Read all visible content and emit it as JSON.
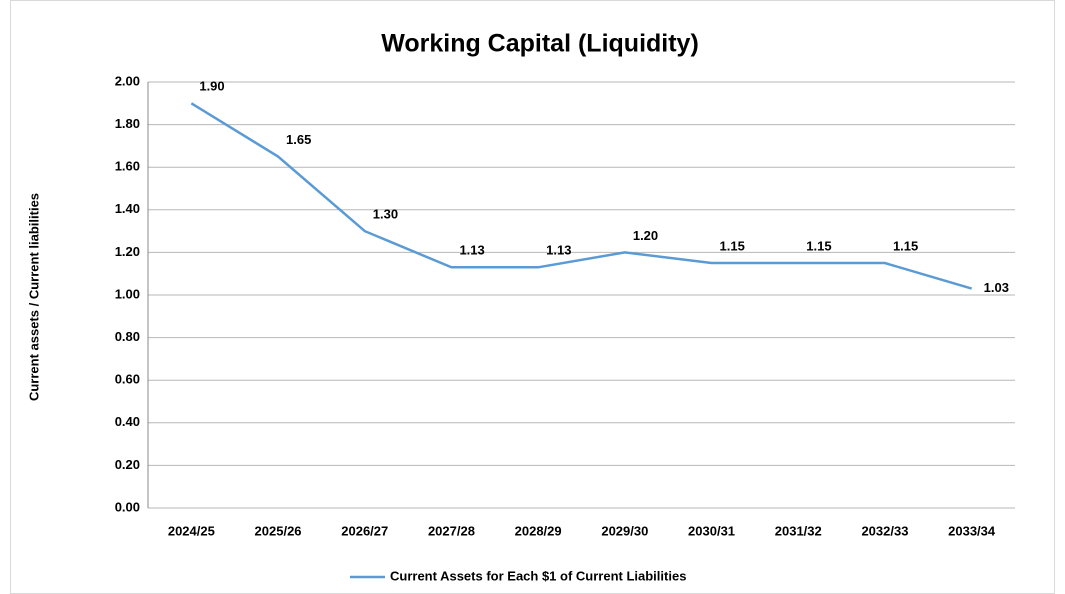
{
  "chart_data": {
    "type": "line",
    "title": "Working Capital (Liquidity)",
    "y_label": "Current assets / Current liabilities",
    "categories": [
      "2024/25",
      "2025/26",
      "2026/27",
      "2027/28",
      "2028/29",
      "2029/30",
      "2030/31",
      "2031/32",
      "2032/33",
      "2033/34"
    ],
    "series": [
      {
        "name": "Current Assets for Each $1 of Current Liabilities",
        "color": "#5b9bd5",
        "values": [
          1.9,
          1.65,
          1.3,
          1.13,
          1.13,
          1.2,
          1.15,
          1.15,
          1.15,
          1.03
        ],
        "value_labels": [
          "1.90",
          "1.65",
          "1.30",
          "1.13",
          "1.13",
          "1.20",
          "1.15",
          "1.15",
          "1.15",
          "1.03"
        ]
      }
    ],
    "ylim": [
      0,
      2
    ],
    "yticks": [
      {
        "value": 0,
        "label": "0.00"
      },
      {
        "value": 0.2,
        "label": "0.20"
      },
      {
        "value": 0.4,
        "label": "0.40"
      },
      {
        "value": 0.6,
        "label": "0.60"
      },
      {
        "value": 0.8,
        "label": "0.80"
      },
      {
        "value": 1,
        "label": "1.00"
      },
      {
        "value": 1.2,
        "label": "1.20"
      },
      {
        "value": 1.4,
        "label": "1.40"
      },
      {
        "value": 1.6,
        "label": "1.60"
      },
      {
        "value": 1.8,
        "label": "1.80"
      },
      {
        "value": 2,
        "label": "2.00"
      }
    ],
    "grid": true,
    "legend": "bottom"
  }
}
